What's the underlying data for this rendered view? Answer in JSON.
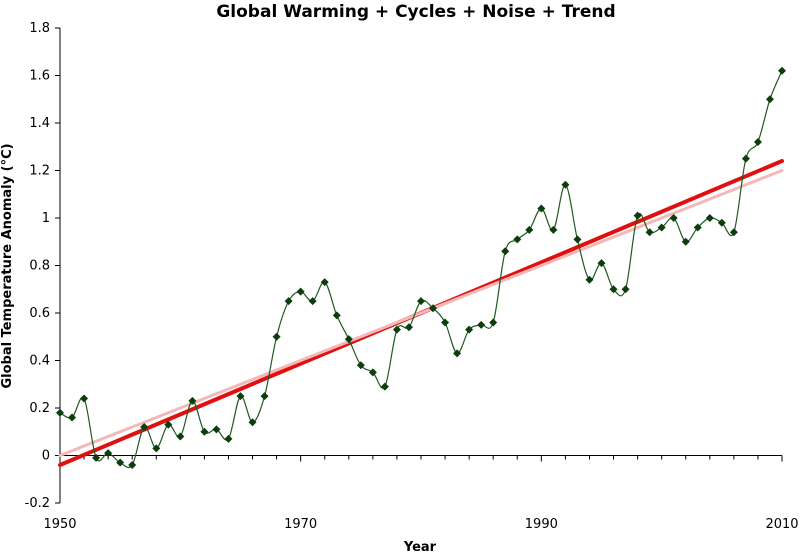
{
  "chart_data": {
    "type": "line",
    "title": "Global Warming + Cycles + Noise + Trend",
    "xlabel": "Year",
    "ylabel": "Global Temperature Anomaly (°C)",
    "xlim": [
      1950,
      2010
    ],
    "ylim": [
      -0.2,
      1.8
    ],
    "x_ticks": [
      1950,
      1970,
      1990,
      2010
    ],
    "y_ticks": [
      -0.2,
      0,
      0.2,
      0.4,
      0.6,
      0.8,
      1,
      1.2,
      1.4,
      1.6,
      1.8
    ],
    "y_tick_labels": [
      "-0.2",
      "0",
      "0.2",
      "0.4",
      "0.6",
      "0.8",
      "1",
      "1.2",
      "1.4",
      "1.6",
      "1.8"
    ],
    "grid": false,
    "legend": "none",
    "colors": {
      "series": "#1f5a1f",
      "marker": "#0c3d0c",
      "trend": "#e01010",
      "trend_underlying": "#f4b8b8"
    },
    "series": [
      {
        "x": [
          1950,
          1951,
          1952,
          1953,
          1954,
          1955,
          1956,
          1957,
          1958,
          1959,
          1960,
          1961,
          1962,
          1963,
          1964,
          1965,
          1966,
          1967,
          1968,
          1969,
          1970,
          1971,
          1972,
          1973,
          1974,
          1975,
          1976,
          1977,
          1978,
          1979,
          1980,
          1981,
          1982,
          1983,
          1984,
          1985,
          1986,
          1987,
          1988,
          1989,
          1990,
          1991,
          1992,
          1993,
          1994,
          1995,
          1996,
          1997,
          1998,
          1999,
          2000,
          2001,
          2002,
          2003,
          2004,
          2005,
          2006,
          2007,
          2008,
          2009,
          2010
        ],
        "values": [
          0.18,
          0.16,
          0.24,
          -0.01,
          0.01,
          -0.03,
          -0.04,
          0.12,
          0.03,
          0.13,
          0.08,
          0.23,
          0.1,
          0.11,
          0.07,
          0.25,
          0.14,
          0.25,
          0.5,
          0.65,
          0.69,
          0.65,
          0.73,
          0.59,
          0.49,
          0.38,
          0.35,
          0.29,
          0.53,
          0.54,
          0.65,
          0.62,
          0.56,
          0.43,
          0.53,
          0.55,
          0.56,
          0.86,
          0.91,
          0.95,
          1.04,
          0.95,
          1.14,
          0.91,
          0.74,
          0.81,
          0.7,
          0.7,
          1.01,
          0.94,
          0.96,
          1.0,
          0.9,
          0.96,
          1.0,
          0.98,
          0.94,
          1.25,
          1.32,
          1.5,
          1.62
        ]
      }
    ],
    "trend_lines": [
      {
        "x": [
          1950,
          2010
        ],
        "values": [
          -0.04,
          1.24
        ],
        "style": "primary"
      },
      {
        "x": [
          1950,
          2010
        ],
        "values": [
          0.0,
          1.2
        ],
        "style": "underlying"
      }
    ]
  }
}
